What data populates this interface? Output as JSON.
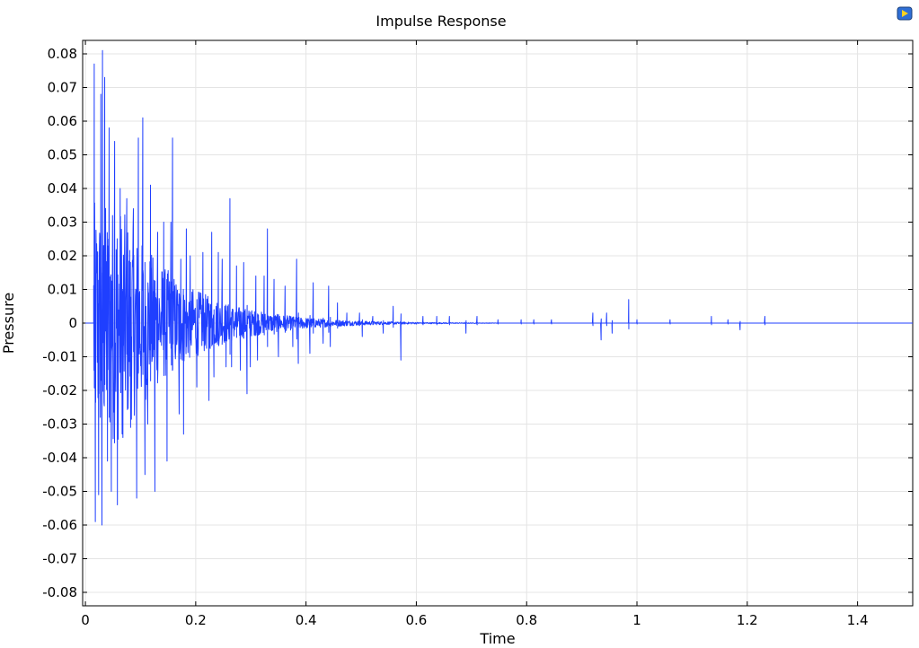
{
  "chart_data": {
    "type": "line",
    "title": "Impulse Response",
    "xlabel": "Time",
    "ylabel": "Pressure",
    "xlim": [
      -0.005,
      1.5
    ],
    "ylim": [
      -0.084,
      0.084
    ],
    "xticks": [
      0,
      0.2,
      0.4,
      0.6,
      0.8,
      1,
      1.2,
      1.4
    ],
    "xtick_labels": [
      "0",
      "0.2",
      "0.4",
      "0.6",
      "0.8",
      "1",
      "1.2",
      "1.4"
    ],
    "yticks": [
      0.08,
      0.07,
      0.06,
      0.05,
      0.04,
      0.03,
      0.02,
      0.01,
      0,
      -0.01,
      -0.02,
      -0.03,
      -0.04,
      -0.05,
      -0.06,
      -0.07,
      -0.08
    ],
    "ytick_labels": [
      "0.08",
      "0.07",
      "0.06",
      "0.05",
      "0.04",
      "0.03",
      "0.02",
      "0.01",
      "0",
      "-0.01",
      "-0.02",
      "-0.03",
      "-0.04",
      "-0.05",
      "-0.06",
      "-0.07",
      "-0.08"
    ],
    "grid": true,
    "series": [
      {
        "color": "#1f3fff",
        "peaks": [
          [
            0.016,
            0.077
          ],
          [
            0.018,
            -0.059
          ],
          [
            0.024,
            -0.051
          ],
          [
            0.028,
            0.068
          ],
          [
            0.03,
            -0.06
          ],
          [
            0.031,
            0.081
          ],
          [
            0.035,
            0.073
          ],
          [
            0.04,
            -0.041
          ],
          [
            0.043,
            0.058
          ],
          [
            0.047,
            -0.05
          ],
          [
            0.053,
            0.054
          ],
          [
            0.058,
            -0.054
          ],
          [
            0.063,
            0.04
          ],
          [
            0.068,
            -0.034
          ],
          [
            0.075,
            0.037
          ],
          [
            0.082,
            -0.031
          ],
          [
            0.087,
            0.034
          ],
          [
            0.093,
            -0.052
          ],
          [
            0.096,
            0.055
          ],
          [
            0.104,
            0.061
          ],
          [
            0.108,
            -0.045
          ],
          [
            0.113,
            -0.03
          ],
          [
            0.118,
            0.041
          ],
          [
            0.126,
            -0.05
          ],
          [
            0.131,
            0.027
          ],
          [
            0.142,
            0.03
          ],
          [
            0.148,
            -0.041
          ],
          [
            0.155,
            0.03
          ],
          [
            0.158,
            0.055
          ],
          [
            0.17,
            -0.027
          ],
          [
            0.173,
            0.019
          ],
          [
            0.178,
            -0.033
          ],
          [
            0.183,
            0.028
          ],
          [
            0.19,
            0.02
          ],
          [
            0.202,
            -0.019
          ],
          [
            0.213,
            0.021
          ],
          [
            0.224,
            -0.023
          ],
          [
            0.229,
            0.027
          ],
          [
            0.233,
            -0.016
          ],
          [
            0.241,
            0.021
          ],
          [
            0.248,
            0.019
          ],
          [
            0.255,
            -0.013
          ],
          [
            0.262,
            0.037
          ],
          [
            0.265,
            -0.013
          ],
          [
            0.274,
            0.017
          ],
          [
            0.281,
            -0.014
          ],
          [
            0.287,
            0.018
          ],
          [
            0.293,
            -0.021
          ],
          [
            0.299,
            -0.013
          ],
          [
            0.309,
            0.014
          ],
          [
            0.312,
            -0.011
          ],
          [
            0.324,
            0.014
          ],
          [
            0.33,
            0.028
          ],
          [
            0.342,
            0.013
          ],
          [
            0.35,
            -0.01
          ],
          [
            0.362,
            0.011
          ],
          [
            0.376,
            -0.007
          ],
          [
            0.383,
            0.019
          ],
          [
            0.386,
            -0.012
          ],
          [
            0.407,
            -0.009
          ],
          [
            0.413,
            0.012
          ],
          [
            0.431,
            -0.006
          ],
          [
            0.441,
            0.011
          ],
          [
            0.444,
            -0.007
          ],
          [
            0.457,
            0.006
          ],
          [
            0.474,
            0.003
          ],
          [
            0.497,
            0.003
          ],
          [
            0.502,
            -0.004
          ],
          [
            0.521,
            0.002
          ],
          [
            0.54,
            -0.003
          ],
          [
            0.558,
            0.005
          ],
          [
            0.572,
            -0.011
          ],
          [
            0.612,
            0.002
          ],
          [
            0.637,
            0.002
          ],
          [
            0.66,
            0.002
          ],
          [
            0.69,
            -0.003
          ],
          [
            0.71,
            0.002
          ],
          [
            0.748,
            0.001
          ],
          [
            0.79,
            0.001
          ],
          [
            0.813,
            0.001
          ],
          [
            0.845,
            0.001
          ],
          [
            0.92,
            0.003
          ],
          [
            0.935,
            -0.005
          ],
          [
            0.945,
            0.003
          ],
          [
            0.955,
            -0.003
          ],
          [
            0.985,
            0.007
          ],
          [
            1.0,
            0.001
          ],
          [
            1.06,
            0.001
          ],
          [
            1.135,
            0.002
          ],
          [
            1.165,
            0.001
          ],
          [
            1.187,
            -0.002
          ],
          [
            1.232,
            0.002
          ]
        ]
      }
    ]
  }
}
